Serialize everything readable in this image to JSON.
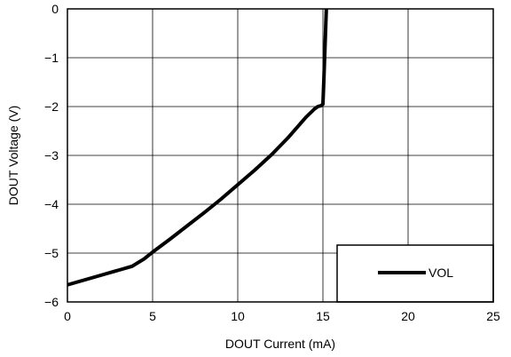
{
  "chart_data": {
    "type": "line",
    "xlabel": "DOUT Current (mA)",
    "ylabel": "DOUT Voltage (V)",
    "xlim": [
      0,
      25
    ],
    "ylim": [
      -6,
      0
    ],
    "x_ticks": [
      0,
      5,
      10,
      15,
      20,
      25
    ],
    "y_ticks": [
      0,
      -1,
      -2,
      -3,
      -4,
      -5,
      -6
    ],
    "x_tick_labels": [
      "0",
      "5",
      "10",
      "15",
      "20",
      "25"
    ],
    "y_tick_labels": [
      "0",
      "−1",
      "−2",
      "−3",
      "−4",
      "−5",
      "−6"
    ],
    "grid": true,
    "legend_position": "bottom-right",
    "line_color": "#000000",
    "series": [
      {
        "name": "VOL",
        "x": [
          0,
          1,
          2,
          3,
          3.8,
          4.5,
          5,
          6,
          7,
          8,
          9,
          10,
          11,
          12,
          13,
          14,
          14.5,
          14.7,
          14.9,
          15.0,
          15.05,
          15.1,
          15.15,
          15.2
        ],
        "y": [
          -5.65,
          -5.55,
          -5.45,
          -5.35,
          -5.27,
          -5.12,
          -4.98,
          -4.72,
          -4.45,
          -4.18,
          -3.9,
          -3.6,
          -3.3,
          -2.98,
          -2.62,
          -2.22,
          -2.05,
          -2.0,
          -1.98,
          -1.95,
          -1.5,
          -1.0,
          -0.5,
          0
        ]
      }
    ]
  }
}
